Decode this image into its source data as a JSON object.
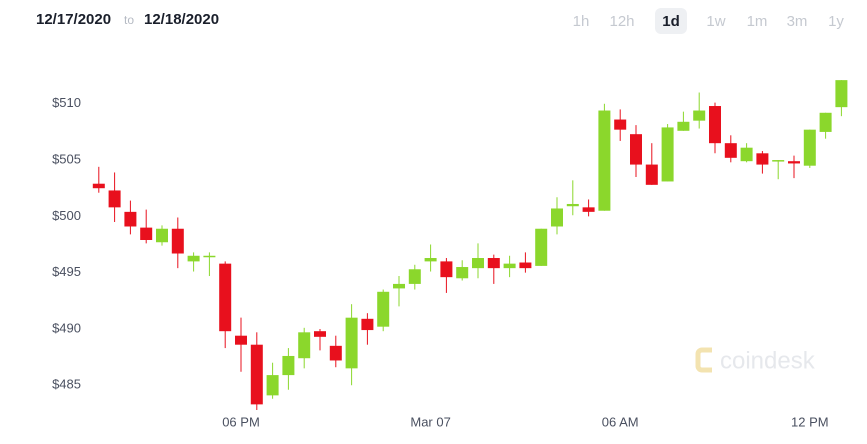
{
  "header": {
    "from": "12/17/2020",
    "to_word": "to",
    "to": "12/18/2020",
    "range_buttons": [
      "1h",
      "12h",
      "1d",
      "1w",
      "1m",
      "3m",
      "1y"
    ],
    "selected_range": 2
  },
  "watermark": "coindesk",
  "chart_data": {
    "type": "candlestick",
    "categories": [
      null,
      null,
      null,
      null,
      null,
      null,
      null,
      null,
      null,
      "06 PM",
      null,
      null,
      null,
      null,
      null,
      null,
      null,
      null,
      null,
      null,
      null,
      "Mar 07",
      null,
      null,
      null,
      null,
      null,
      null,
      null,
      null,
      null,
      null,
      null,
      "06 AM",
      null,
      null,
      null,
      null,
      null,
      null,
      null,
      null,
      null,
      null,
      null,
      "12 PM",
      null,
      null
    ],
    "open": [
      502.9,
      502.3,
      500.4,
      499.0,
      497.7,
      498.9,
      496.0,
      496.4,
      495.8,
      489.4,
      488.6,
      484.1,
      485.9,
      487.4,
      489.8,
      488.5,
      486.5,
      490.9,
      490.2,
      493.6,
      494.0,
      496.0,
      496.0,
      494.5,
      495.4,
      496.3,
      495.4,
      495.9,
      495.6,
      499.1,
      500.9,
      500.8,
      500.5,
      508.6,
      507.3,
      504.6,
      503.1,
      507.6,
      508.5,
      509.8,
      506.5,
      504.9,
      505.6,
      504.9,
      504.9,
      504.5,
      507.5,
      509.7
    ],
    "high": [
      504.4,
      503.9,
      501.4,
      500.6,
      499.2,
      499.9,
      496.8,
      496.8,
      496.0,
      491.0,
      489.7,
      487.0,
      488.3,
      490.1,
      490.0,
      489.4,
      492.2,
      491.4,
      493.5,
      494.7,
      495.7,
      497.5,
      496.3,
      496.1,
      497.6,
      496.6,
      496.5,
      496.8,
      498.9,
      501.7,
      503.2,
      501.5,
      510.0,
      509.5,
      508.1,
      506.5,
      508.2,
      509.3,
      511.0,
      510.1,
      507.2,
      506.5,
      505.8,
      505.0,
      505.4,
      507.7,
      509.2,
      512.1
    ],
    "low": [
      502.1,
      499.5,
      498.4,
      497.6,
      497.4,
      495.4,
      495.1,
      494.7,
      488.3,
      486.2,
      482.8,
      483.8,
      484.6,
      486.5,
      488.1,
      486.6,
      485.0,
      488.6,
      489.8,
      492.0,
      493.5,
      495.1,
      493.2,
      494.3,
      494.5,
      494.0,
      494.6,
      495.0,
      495.6,
      498.4,
      500.1,
      500.0,
      500.5,
      506.7,
      503.5,
      502.8,
      503.1,
      507.6,
      507.8,
      505.6,
      504.8,
      504.8,
      503.8,
      503.3,
      503.4,
      504.3,
      506.9,
      508.9
    ],
    "close": [
      502.5,
      500.8,
      499.1,
      497.9,
      498.9,
      496.7,
      496.5,
      496.5,
      489.8,
      488.6,
      483.3,
      485.9,
      487.6,
      489.7,
      489.3,
      487.2,
      491.0,
      489.9,
      493.3,
      494.0,
      495.3,
      496.3,
      494.6,
      495.5,
      496.3,
      495.4,
      495.8,
      495.4,
      498.9,
      500.7,
      501.1,
      500.4,
      509.4,
      507.7,
      504.6,
      502.8,
      507.9,
      508.4,
      509.4,
      506.5,
      505.2,
      506.1,
      504.6,
      505.0,
      504.7,
      507.7,
      509.2,
      512.1
    ],
    "up_color": "#8bd72c",
    "down_color": "#e8101d",
    "ylim": [
      482.8,
      513.0
    ],
    "yticks": [
      {
        "value": 485,
        "label": "$485"
      },
      {
        "value": 490,
        "label": "$490"
      },
      {
        "value": 495,
        "label": "$495"
      },
      {
        "value": 500,
        "label": "$500"
      },
      {
        "value": 505,
        "label": "$505"
      },
      {
        "value": 510,
        "label": "$510"
      }
    ],
    "grid": false
  }
}
